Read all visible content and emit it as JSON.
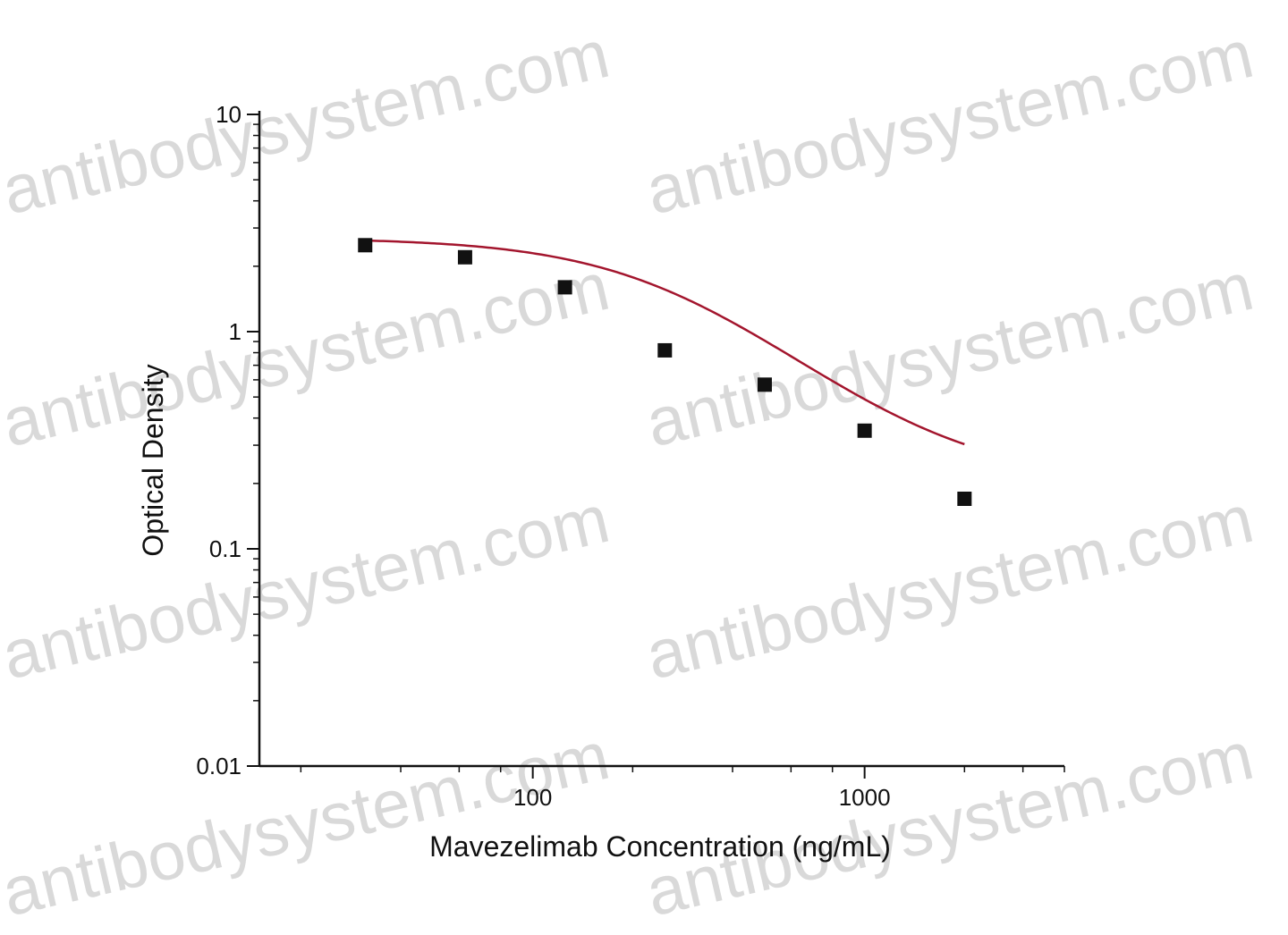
{
  "watermark": "antibodysystem.com",
  "chart_data": {
    "type": "scatter",
    "xscale": "log",
    "yscale": "log",
    "xlim": [
      15,
      4000
    ],
    "ylim": [
      0.01,
      10
    ],
    "xlabel": "Mavezelimab Concentration (ng/mL)",
    "ylabel": "Optical Density",
    "x_tick_labels": [
      "100",
      "1000"
    ],
    "y_tick_labels": [
      "0.01",
      "0.1",
      "1",
      "10"
    ],
    "grid": false,
    "series": [
      {
        "marker": "square",
        "color": "#111111",
        "x": [
          31.25,
          62.5,
          125,
          250,
          500,
          1000,
          2000
        ],
        "y": [
          2.5,
          2.2,
          1.6,
          0.82,
          0.57,
          0.35,
          0.17
        ]
      }
    ],
    "fit_curve": {
      "type": "4PL",
      "color": "#a3152d",
      "x_range": [
        31.25,
        2000
      ],
      "top": 2.7,
      "bottom": 0.2,
      "ec50": 280,
      "hill": 1.6
    }
  }
}
